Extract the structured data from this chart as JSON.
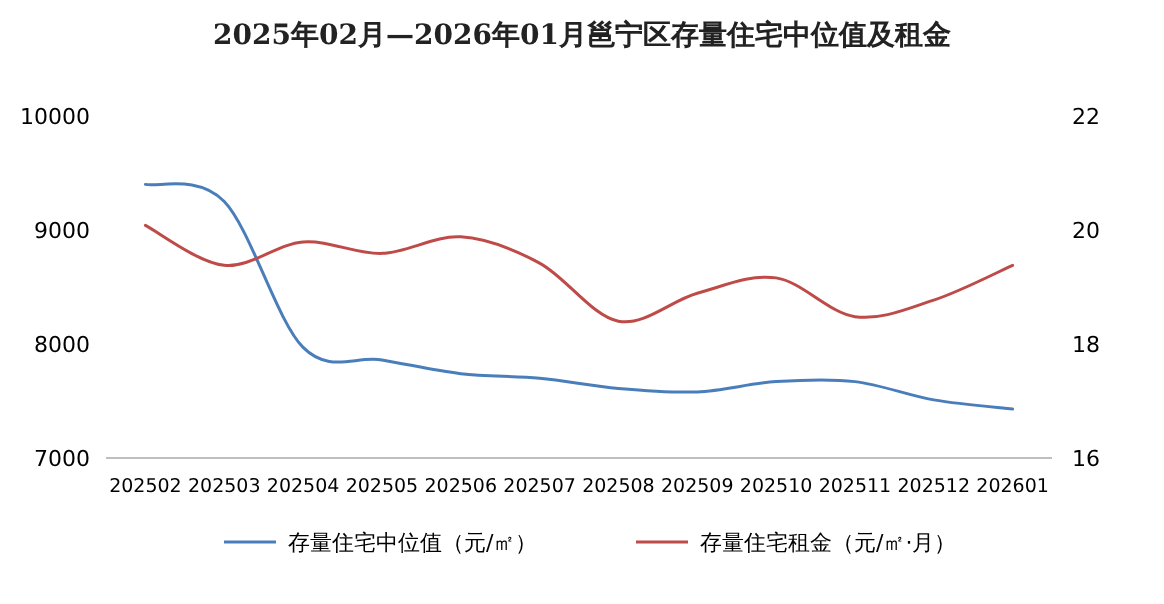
{
  "chart_data": {
    "type": "line",
    "title": "2025年02月—2026年01月邕宁区存量住宅中位值及租金",
    "categories": [
      "202502",
      "202503",
      "202504",
      "202505",
      "202506",
      "202507",
      "202508",
      "202509",
      "202510",
      "202511",
      "202512",
      "202601"
    ],
    "series": [
      {
        "name": "存量住宅中位值（元/㎡）",
        "color": "#4a7ebb",
        "values": [
          9400,
          9250,
          7970,
          7860,
          7740,
          7700,
          7610,
          7580,
          7670,
          7670,
          7510,
          7430
        ]
      },
      {
        "name": "存量住宅租金（元/㎡·月）",
        "color": "#be4b48",
        "axis": "y2",
        "values": [
          20.08,
          19.38,
          19.79,
          19.59,
          19.88,
          19.42,
          18.4,
          18.89,
          19.16,
          18.48,
          18.77,
          19.38
        ]
      }
    ],
    "ylim": [
      7000,
      10000
    ],
    "yticks": [
      7000,
      8000,
      9000,
      10000
    ],
    "y2lim": [
      16,
      22
    ],
    "y2ticks": [
      16,
      18,
      20,
      22
    ],
    "grid": false,
    "legend": "bottom",
    "marker": "none",
    "line_style": "solid"
  }
}
